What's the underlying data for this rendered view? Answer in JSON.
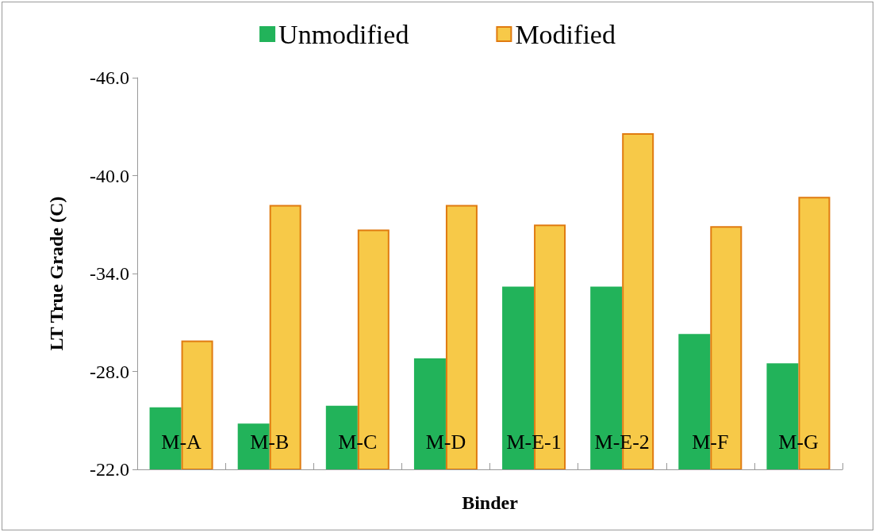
{
  "chart_data": {
    "type": "bar",
    "xlabel": "Binder",
    "ylabel": "LT True Grade (C)",
    "categories": [
      "M-A",
      "M-B",
      "M-C",
      "M-D",
      "M-E-1",
      "M-E-2",
      "M-F",
      "M-G"
    ],
    "series": [
      {
        "name": "Unmodified",
        "color": "#22b35a",
        "values": [
          -25.8,
          -24.8,
          -25.9,
          -28.8,
          -33.2,
          -33.2,
          -30.3,
          -28.5
        ]
      },
      {
        "name": "Modified",
        "color": "#f7c948",
        "values": [
          -29.9,
          -38.2,
          -36.7,
          -38.2,
          -37.0,
          -42.6,
          -36.9,
          -38.7
        ]
      }
    ],
    "ylim": [
      -22,
      -46
    ],
    "yticks": [
      {
        "value": -22,
        "label": "-22.0"
      },
      {
        "value": -28,
        "label": "-28.0"
      },
      {
        "value": -34,
        "label": "-34.0"
      },
      {
        "value": -40,
        "label": "-40.0"
      },
      {
        "value": -46,
        "label": "-46.0"
      }
    ],
    "grid": false,
    "legend": "top"
  }
}
